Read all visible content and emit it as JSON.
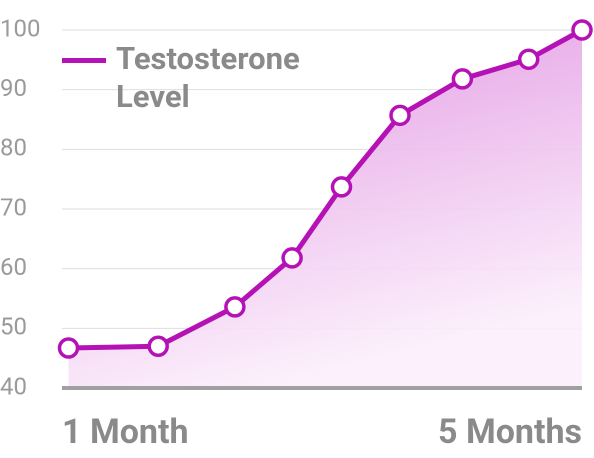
{
  "chart_data": {
    "type": "area",
    "series": [
      {
        "name": "Testosterone Level",
        "color": "#b512b5",
        "x": [
          1.05,
          1.74,
          2.33,
          2.77,
          3.15,
          3.6,
          4.08,
          4.59,
          5.0
        ],
        "values": [
          46.7,
          47,
          53.6,
          61.8,
          73.7,
          85.7,
          91.8,
          95.1,
          100
        ]
      }
    ],
    "xlim": [
      1,
      5
    ],
    "xticks": [
      {
        "value": 1,
        "label": "1 Month"
      },
      {
        "value": 5,
        "label": "5 Months"
      }
    ],
    "ylim": [
      40,
      100
    ],
    "yticks": [
      40,
      50,
      60,
      70,
      80,
      90,
      100
    ],
    "grid": true,
    "legend": "top-left"
  }
}
